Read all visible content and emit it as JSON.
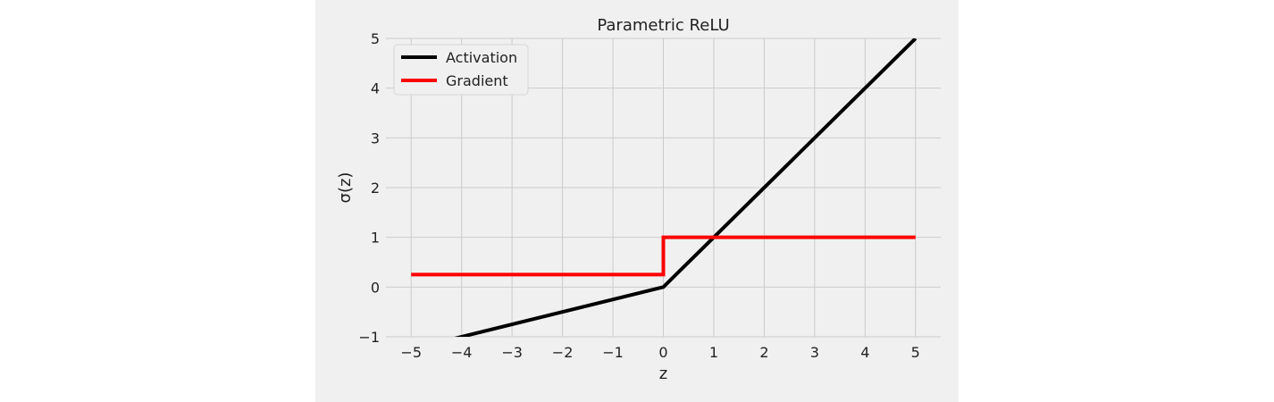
{
  "chart_data": {
    "type": "line",
    "title": "Parametric ReLU",
    "xlabel": "z",
    "ylabel": "σ(z)",
    "xlim": [
      -5.5,
      5.5
    ],
    "ylim": [
      -1,
      5
    ],
    "xticks": [
      -5,
      -4,
      -3,
      -2,
      -1,
      0,
      1,
      2,
      3,
      4,
      5
    ],
    "yticks": [
      -1,
      0,
      1,
      2,
      3,
      4,
      5
    ],
    "xtick_labels": [
      "−5",
      "−4",
      "−3",
      "−2",
      "−1",
      "0",
      "1",
      "2",
      "3",
      "4",
      "5"
    ],
    "ytick_labels": [
      "−1",
      "0",
      "1",
      "2",
      "3",
      "4",
      "5"
    ],
    "grid": true,
    "legend_position": "top-left",
    "series": [
      {
        "name": "Activation",
        "color": "#000000",
        "x": [
          -5,
          0,
          5
        ],
        "y": [
          -1.25,
          0,
          5
        ]
      },
      {
        "name": "Gradient",
        "color": "#ff0000",
        "x": [
          -5,
          0,
          0,
          5
        ],
        "y": [
          0.25,
          0.25,
          1,
          1
        ]
      }
    ]
  }
}
